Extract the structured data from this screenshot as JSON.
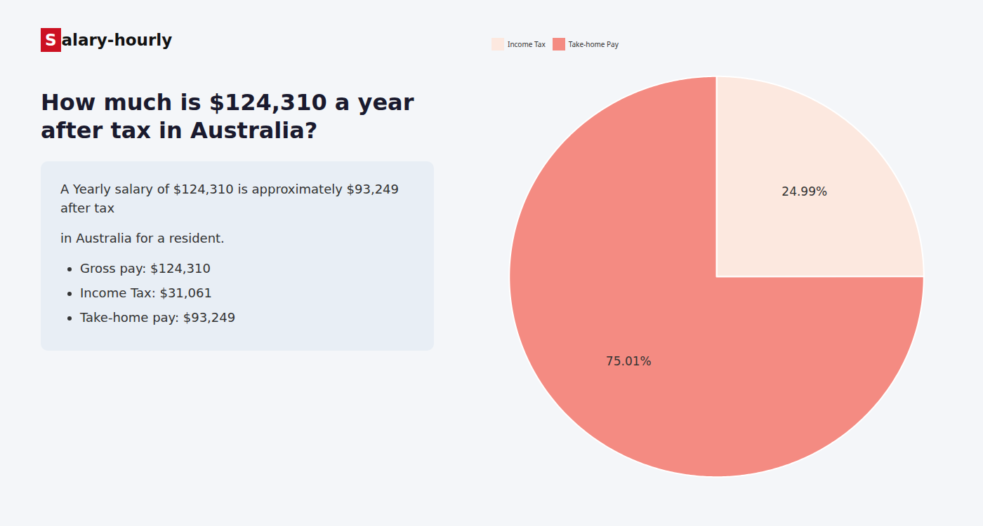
{
  "chart_data": {
    "type": "pie",
    "title": "How much is $124,310 a year after tax in Australia?",
    "annotations": [
      "Salary-hourly",
      "A Yearly salary of $124,310 is approximately $93,249 after tax",
      "in Australia for a resident.",
      "Gross pay: $124,310",
      "Income Tax: $31,061",
      "Take-home pay: $93,249"
    ],
    "categories": [
      "Income Tax",
      "Take-home Pay"
    ],
    "values": [
      24.99,
      75.01
    ],
    "value_labels": [
      "24.99%",
      "75.01%"
    ],
    "colors": [
      "#fce8df",
      "#f48b82"
    ],
    "data_labels": true,
    "legend": "top"
  }
}
